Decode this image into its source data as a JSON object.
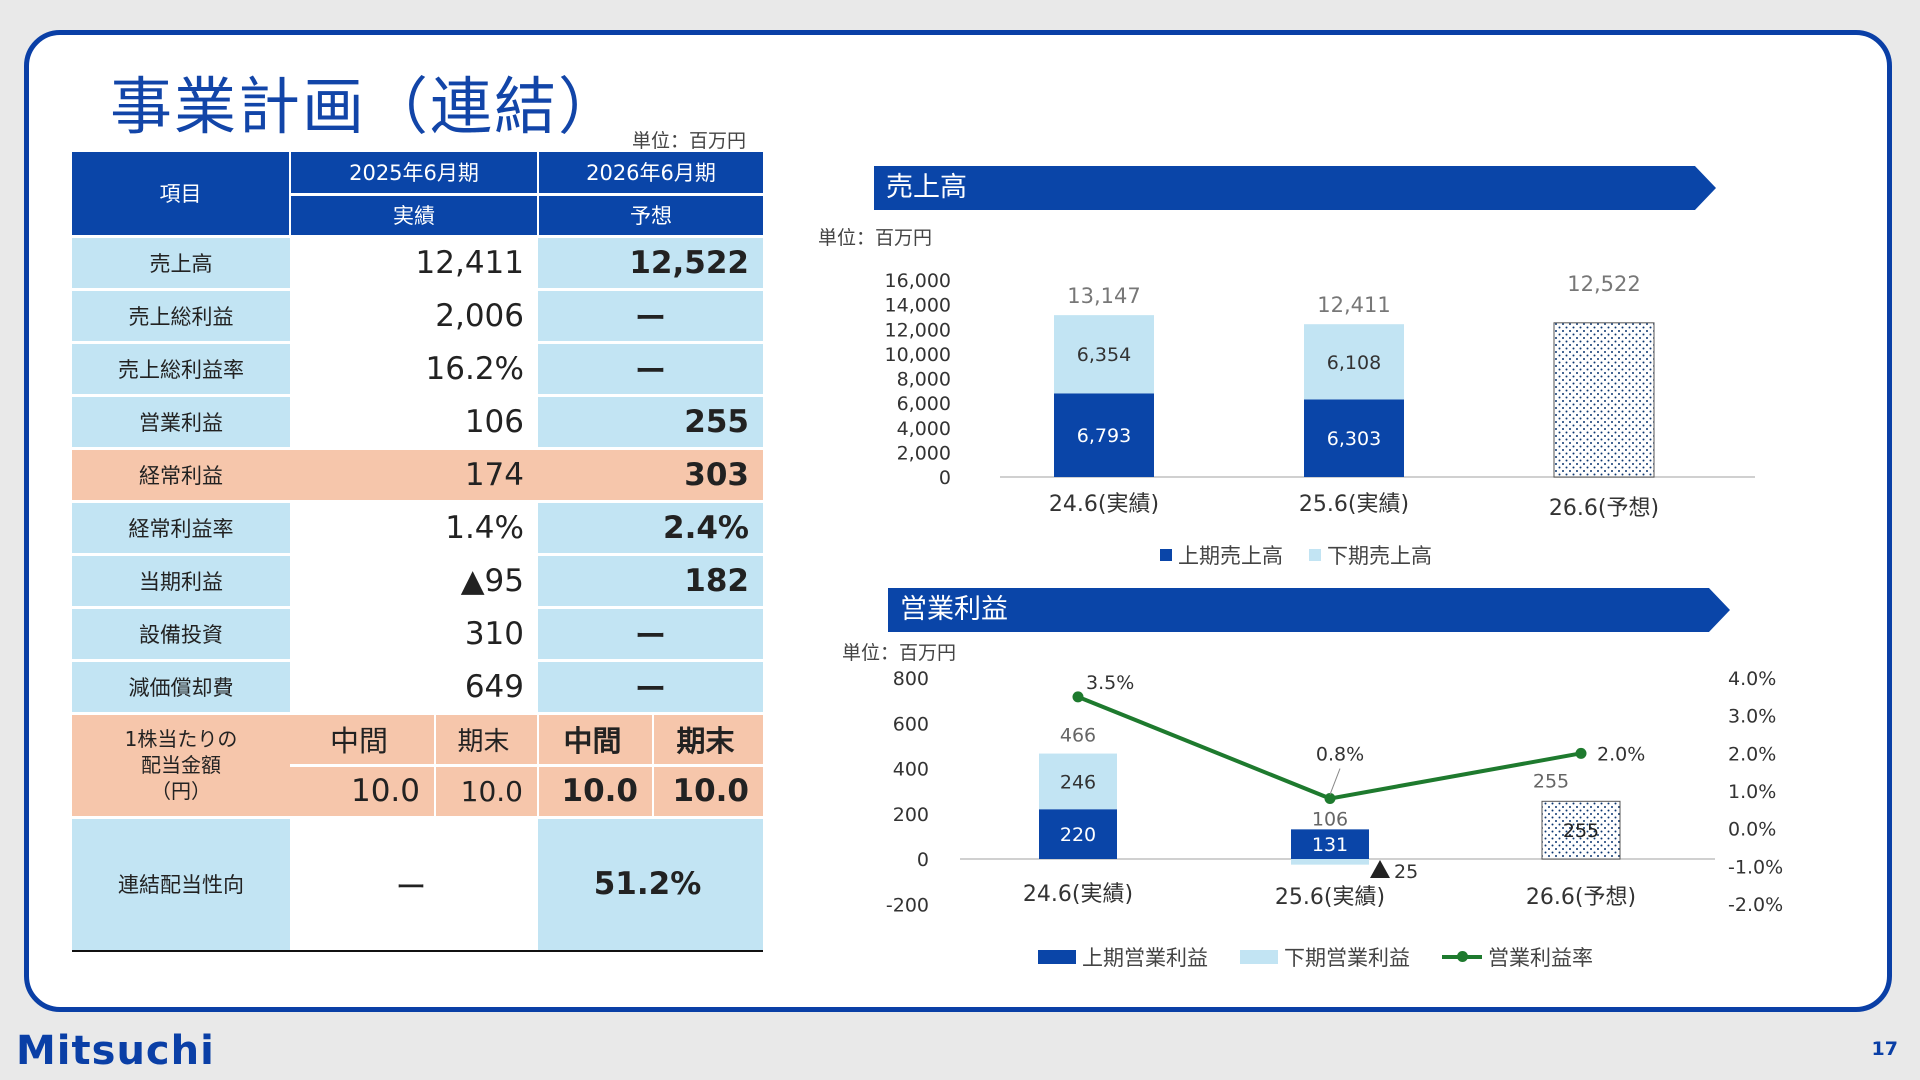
{
  "title": "事業計画（連結）",
  "table_unit": "単位：百万円",
  "table": {
    "header": {
      "item": "項目",
      "col1_period": "2025年6月期",
      "col1_type": "実績",
      "col2_period": "2026年6月期",
      "col2_type": "予想"
    },
    "rows": [
      {
        "label": "売上高",
        "actual": "12,411",
        "forecast": "12,522"
      },
      {
        "label": "売上総利益",
        "actual": "2,006",
        "forecast": "ー"
      },
      {
        "label": "売上総利益率",
        "actual": "16.2%",
        "forecast": "ー"
      },
      {
        "label": "営業利益",
        "actual": "106",
        "forecast": "255"
      },
      {
        "label": "経常利益",
        "actual": "174",
        "forecast": "303"
      },
      {
        "label": "経常利益率",
        "actual": "1.4%",
        "forecast": "2.4%"
      },
      {
        "label": "当期利益",
        "actual": "▲95",
        "forecast": "182"
      },
      {
        "label": "設備投資",
        "actual": "310",
        "forecast": "ー"
      },
      {
        "label": "減価償却費",
        "actual": "649",
        "forecast": "ー"
      }
    ],
    "dividend": {
      "label_line1": "1株当たりの",
      "label_line2": "配当金額",
      "label_line3": "（円）",
      "interim": "中間",
      "year_end": "期末",
      "actual_interim": "10.0",
      "actual_year_end": "10.0",
      "forecast_interim": "10.0",
      "forecast_year_end": "10.0"
    },
    "payout": {
      "label": "連結配当性向",
      "actual": "ー",
      "forecast": "51.2%"
    }
  },
  "chart_data": [
    {
      "type": "bar",
      "title": "売上高",
      "unit": "単位：百万円",
      "categories": [
        "24.6(実績)",
        "25.6(実績)",
        "26.6(予想)"
      ],
      "series": [
        {
          "name": "上期売上高",
          "values": [
            6793,
            6303,
            null
          ],
          "color": "#0a45a8"
        },
        {
          "name": "下期売上高",
          "values": [
            6354,
            6108,
            null
          ],
          "color": "#c2e4f3"
        }
      ],
      "totals": [
        "13,147",
        "12,411",
        "12,522"
      ],
      "forecast_total": 12522,
      "y_ticks": [
        "16,000",
        "14,000",
        "12,000",
        "10,000",
        "8,000",
        "6,000",
        "4,000",
        "2,000",
        "0"
      ],
      "ylim": [
        0,
        16000
      ],
      "legend": "bottom"
    },
    {
      "type": "bar",
      "title": "営業利益",
      "unit": "単位：百万円",
      "categories": [
        "24.6(実績)",
        "25.6(実績)",
        "26.6(予想)"
      ],
      "series": [
        {
          "name": "上期営業利益",
          "values": [
            220,
            131,
            null
          ],
          "color": "#0a45a8"
        },
        {
          "name": "下期営業利益",
          "values": [
            246,
            -25,
            null
          ],
          "color": "#c2e4f3"
        },
        {
          "name": "営業利益率",
          "type": "line",
          "values": [
            3.5,
            0.8,
            2.0
          ],
          "labels": [
            "3.5%",
            "0.8%",
            "2.0%"
          ],
          "color": "#1e7a2e"
        }
      ],
      "totals": [
        "466",
        "106",
        "255"
      ],
      "forecast_total": 255,
      "forecast_label": "255",
      "negative_label": "25",
      "y_ticks": [
        "800",
        "600",
        "400",
        "200",
        "0",
        "-200"
      ],
      "y2_ticks": [
        "4.0%",
        "3.0%",
        "2.0%",
        "1.0%",
        "0.0%",
        "-1.0%",
        "-2.0%"
      ],
      "ylim": [
        -200,
        800
      ],
      "y2lim": [
        -2.0,
        4.0
      ],
      "legend": "bottom"
    }
  ],
  "footer": {
    "logo": "Mitsuchi",
    "page": "17"
  }
}
